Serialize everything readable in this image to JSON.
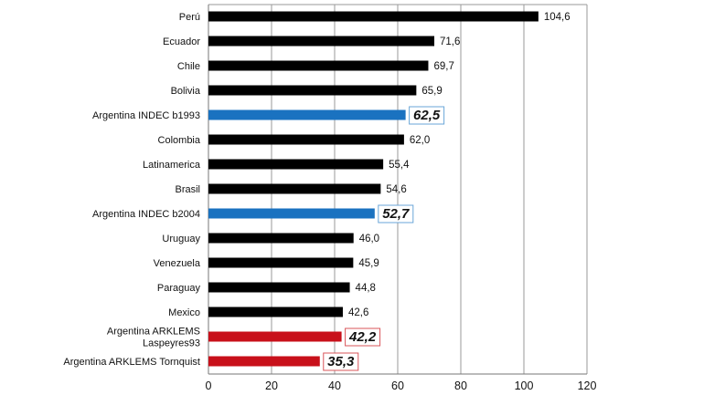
{
  "chart_data": {
    "type": "bar",
    "orientation": "horizontal",
    "title": "",
    "xlabel": "",
    "ylabel": "",
    "xlim": [
      0,
      120
    ],
    "xticks": [
      0,
      20,
      40,
      60,
      80,
      100,
      120
    ],
    "grid": true,
    "categories": [
      "Perú",
      "Ecuador",
      "Chile",
      "Bolivia",
      "Argentina INDEC b1993",
      "Colombia",
      "Latinamerica",
      "Brasil",
      "Argentina INDEC b2004",
      "Uruguay",
      "Venezuela",
      "Paraguay",
      "Mexico",
      "Argentina ARKLEMS Laspeyres93",
      "Argentina ARKLEMS Tornquist"
    ],
    "category_lines": [
      [
        "Perú"
      ],
      [
        "Ecuador"
      ],
      [
        "Chile"
      ],
      [
        "Bolivia"
      ],
      [
        "Argentina INDEC b1993"
      ],
      [
        "Colombia"
      ],
      [
        "Latinamerica"
      ],
      [
        "Brasil"
      ],
      [
        "Argentina INDEC b2004"
      ],
      [
        "Uruguay"
      ],
      [
        "Venezuela"
      ],
      [
        "Paraguay"
      ],
      [
        "Mexico"
      ],
      [
        "Argentina ARKLEMS",
        "Laspeyres93"
      ],
      [
        "Argentina ARKLEMS Tornquist"
      ]
    ],
    "values": [
      104.6,
      71.6,
      69.7,
      65.9,
      62.5,
      62.0,
      55.4,
      54.6,
      52.7,
      46.0,
      45.9,
      44.8,
      42.6,
      42.2,
      35.3
    ],
    "value_labels": [
      "104,6",
      "71,6",
      "69,7",
      "65,9",
      "62,5",
      "62,0",
      "55,4",
      "54,6",
      "52,7",
      "46,0",
      "45,9",
      "44,8",
      "42,6",
      "42,2",
      "35,3"
    ],
    "groups": [
      "normal",
      "normal",
      "normal",
      "normal",
      "indec",
      "normal",
      "normal",
      "normal",
      "indec",
      "normal",
      "normal",
      "normal",
      "normal",
      "arklems",
      "arklems"
    ],
    "colors": {
      "normal": "#000000",
      "indec": "#1a72c0",
      "arklems": "#c8101a",
      "indec_box": "#6aa6d8",
      "arklems_box": "#d9545a",
      "grid": "#9a9a9a"
    }
  }
}
